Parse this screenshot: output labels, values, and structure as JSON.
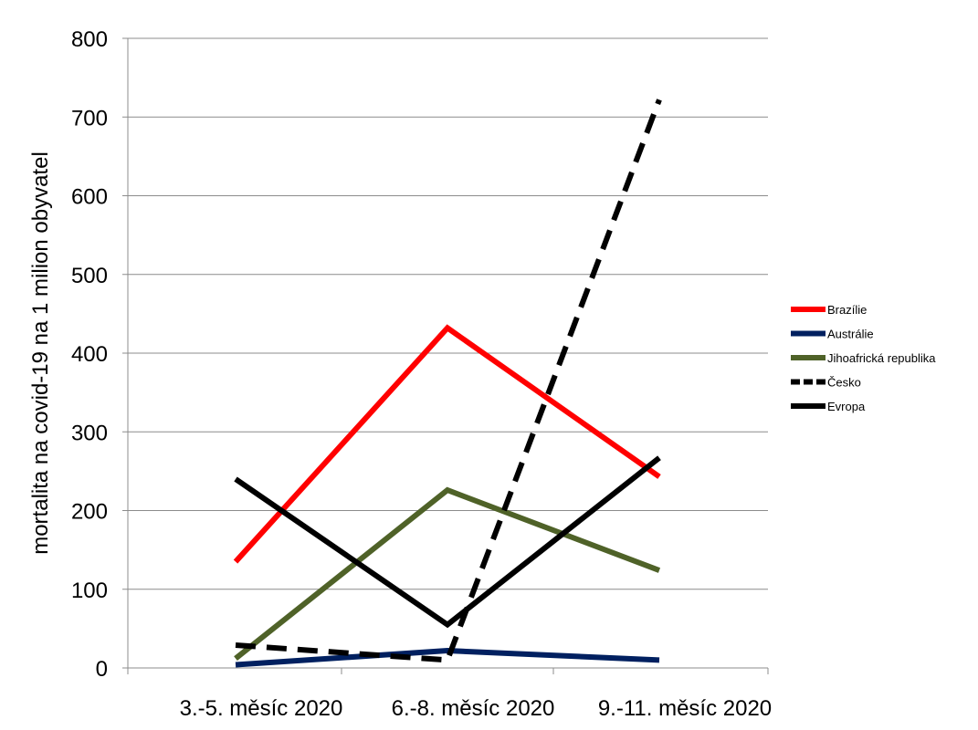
{
  "chart_data": {
    "type": "line",
    "categories": [
      "3.-5. měsíc 2020",
      "6.-8. měsíc 2020",
      "9.-11. měsíc 2020"
    ],
    "ylabel": "mortalita na covid-19 na 1 milion  obyvatel",
    "ylim": [
      0,
      800
    ],
    "yticks": [
      "0",
      "100",
      "200",
      "300",
      "400",
      "500",
      "600",
      "700",
      "800"
    ],
    "grid": true,
    "legend_position": "right",
    "series": [
      {
        "name": "Brazílie",
        "values": [
          135,
          432,
          243
        ],
        "color": "#ff0000",
        "dashed": false
      },
      {
        "name": "Austrálie",
        "values": [
          4,
          22,
          10
        ],
        "color": "#002060",
        "dashed": false
      },
      {
        "name": "Jihoafrická republika",
        "values": [
          12,
          226,
          124
        ],
        "color": "#4f6228",
        "dashed": false
      },
      {
        "name": "Česko",
        "values": [
          29,
          10,
          722
        ],
        "color": "#000000",
        "dashed": true
      },
      {
        "name": "Evropa",
        "values": [
          240,
          55,
          267
        ],
        "color": "#000000",
        "dashed": false
      }
    ]
  }
}
